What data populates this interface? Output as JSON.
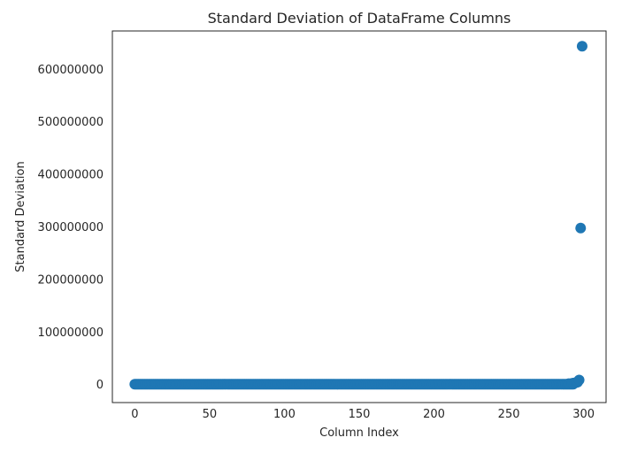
{
  "chart_data": {
    "type": "scatter",
    "title": "Standard Deviation of DataFrame Columns",
    "xlabel": "Column Index",
    "ylabel": "Standard Deviation",
    "xlim": [
      -15,
      315
    ],
    "ylim": [
      -35000000,
      672000000
    ],
    "xticks": [
      {
        "value": 0,
        "label": "0"
      },
      {
        "value": 50,
        "label": "50"
      },
      {
        "value": 100,
        "label": "100"
      },
      {
        "value": 150,
        "label": "150"
      },
      {
        "value": 200,
        "label": "200"
      },
      {
        "value": 250,
        "label": "250"
      },
      {
        "value": 300,
        "label": "300"
      }
    ],
    "yticks": [
      {
        "value": 0,
        "label": "0"
      },
      {
        "value": 100000000,
        "label": "100000000"
      },
      {
        "value": 200000000,
        "label": "200000000"
      },
      {
        "value": 300000000,
        "label": "300000000"
      },
      {
        "value": 400000000,
        "label": "400000000"
      },
      {
        "value": 500000000,
        "label": "500000000"
      },
      {
        "value": 600000000,
        "label": "600000000"
      }
    ],
    "grid": false,
    "marker_color": "#1f77b4",
    "baseline": {
      "x_start": 0,
      "x_end": 293,
      "y": 0
    },
    "points": [
      {
        "x": 290,
        "y": 1000000
      },
      {
        "x": 292,
        "y": 1500000
      },
      {
        "x": 293,
        "y": 2000000
      },
      {
        "x": 294,
        "y": 2500000
      },
      {
        "x": 295,
        "y": 3000000
      },
      {
        "x": 296,
        "y": 4000000
      },
      {
        "x": 297,
        "y": 8000000
      },
      {
        "x": 298,
        "y": 297000000
      },
      {
        "x": 299,
        "y": 643000000
      }
    ]
  }
}
